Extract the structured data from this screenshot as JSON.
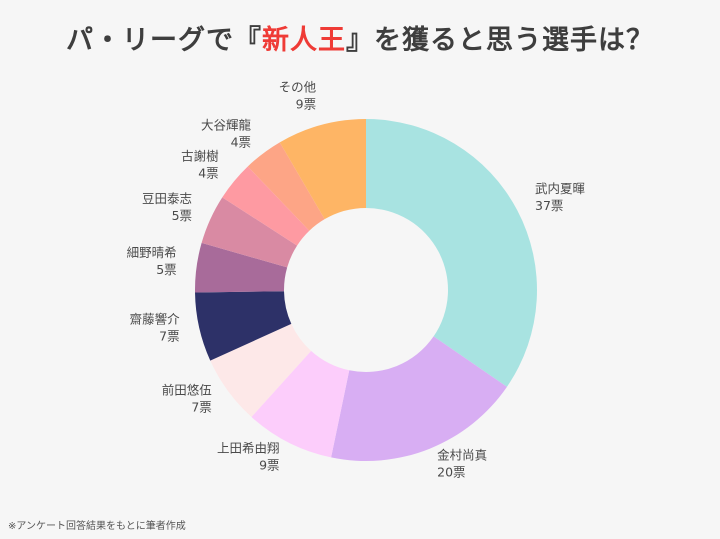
{
  "title": {
    "prefix": "パ・リーグで『",
    "highlight": "新人王",
    "suffix": "』を獲ると思う選手は？"
  },
  "footnote": "※アンケート回答結果をもとに筆者作成",
  "chart_data": {
    "type": "pie",
    "variant": "donut",
    "unit": "票",
    "start": "top, clockwise",
    "slices": [
      {
        "label": "武内夏暉",
        "value": 37,
        "color": "#a8e3e1"
      },
      {
        "label": "金村尚真",
        "value": 20,
        "color": "#d8aef3"
      },
      {
        "label": "上田希由翔",
        "value": 9,
        "color": "#fccdfb"
      },
      {
        "label": "前田悠伍",
        "value": 7,
        "color": "#fde8e8"
      },
      {
        "label": "齋藤響介",
        "value": 7,
        "color": "#2d3168"
      },
      {
        "label": "細野晴希",
        "value": 5,
        "color": "#a86b9a"
      },
      {
        "label": "豆田泰志",
        "value": 5,
        "color": "#d98aa3"
      },
      {
        "label": "古謝樹",
        "value": 4,
        "color": "#fe9aa2"
      },
      {
        "label": "大谷輝龍",
        "value": 4,
        "color": "#fda586"
      },
      {
        "label": "その他",
        "value": 9,
        "color": "#feb565"
      }
    ]
  }
}
